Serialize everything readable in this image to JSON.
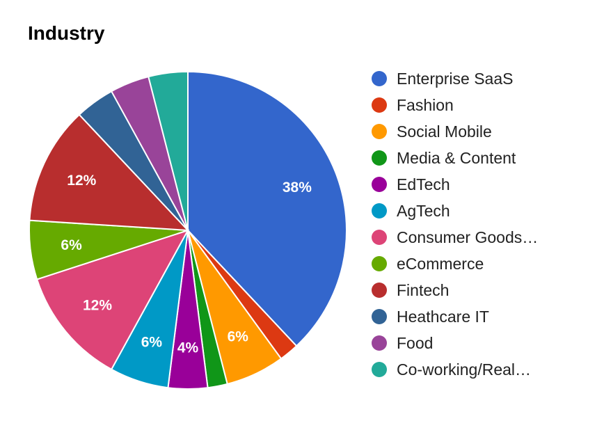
{
  "chart_data": {
    "type": "pie",
    "title": "Industry",
    "legend_position": "right",
    "slices": [
      {
        "name": "Enterprise SaaS",
        "value": 38,
        "color": "#3366cc",
        "label": "38%"
      },
      {
        "name": "Fashion",
        "value": 2,
        "color": "#dc3912",
        "label": ""
      },
      {
        "name": "Social Mobile",
        "value": 6,
        "color": "#ff9900",
        "label": "6%"
      },
      {
        "name": "Media & Content",
        "value": 2,
        "color": "#109618",
        "label": ""
      },
      {
        "name": "EdTech",
        "value": 4,
        "color": "#990099",
        "label": "4%"
      },
      {
        "name": "AgTech",
        "value": 6,
        "color": "#0099c6",
        "label": "6%"
      },
      {
        "name": "Consumer Goods…",
        "value": 12,
        "color": "#dd4477",
        "label": "12%"
      },
      {
        "name": "eCommerce",
        "value": 6,
        "color": "#66aa00",
        "label": "6%"
      },
      {
        "name": "Fintech",
        "value": 12,
        "color": "#b82e2e",
        "label": "12%"
      },
      {
        "name": "Heathcare IT",
        "value": 4,
        "color": "#316395",
        "label": ""
      },
      {
        "name": "Food",
        "value": 4,
        "color": "#994499",
        "label": ""
      },
      {
        "name": "Co-working/Real…",
        "value": 4,
        "color": "#22aa99",
        "label": ""
      }
    ]
  }
}
